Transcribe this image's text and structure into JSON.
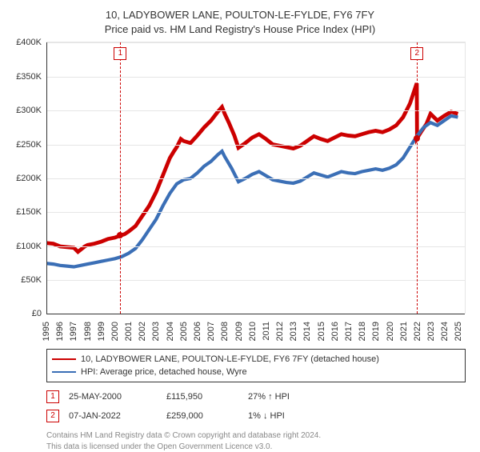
{
  "title_line1": "10, LADYBOWER LANE, POULTON-LE-FYLDE, FY6 7FY",
  "title_line2": "Price paid vs. HM Land Registry's House Price Index (HPI)",
  "chart": {
    "type": "line",
    "background_color": "#ffffff",
    "grid_color": "#e6e6e6",
    "axis_color": "#333333",
    "x_years": [
      1995,
      1996,
      1997,
      1998,
      1999,
      2000,
      2001,
      2002,
      2003,
      2004,
      2005,
      2006,
      2007,
      2008,
      2009,
      2010,
      2011,
      2012,
      2013,
      2014,
      2015,
      2016,
      2017,
      2018,
      2019,
      2020,
      2021,
      2022,
      2023,
      2024,
      2025
    ],
    "x_min": 1995,
    "x_max": 2025.5,
    "ylim": [
      0,
      400000
    ],
    "ytick_step": 50000,
    "ytick_labels": [
      "£0",
      "£50K",
      "£100K",
      "£150K",
      "£200K",
      "£250K",
      "£300K",
      "£350K",
      "£400K"
    ],
    "tick_fontsize": 11,
    "series": [
      {
        "name": "price_paid",
        "label": "10, LADYBOWER LANE, POULTON-LE-FYLDE, FY6 7FY (detached house)",
        "color": "#cc0000",
        "line_width": 1.6,
        "data": [
          [
            1995,
            105000
          ],
          [
            1995.5,
            104000
          ],
          [
            1996,
            100000
          ],
          [
            1996.5,
            99000
          ],
          [
            1997,
            98000
          ],
          [
            1997.3,
            92000
          ],
          [
            1997.8,
            100000
          ],
          [
            1998,
            102000
          ],
          [
            1998.5,
            104000
          ],
          [
            1999,
            107000
          ],
          [
            1999.5,
            111000
          ],
          [
            2000,
            113000
          ],
          [
            2000.39,
            115950
          ],
          [
            2000.7,
            118000
          ],
          [
            2001,
            122000
          ],
          [
            2001.5,
            130000
          ],
          [
            2002,
            145000
          ],
          [
            2002.5,
            160000
          ],
          [
            2003,
            180000
          ],
          [
            2003.5,
            205000
          ],
          [
            2004,
            230000
          ],
          [
            2004.3,
            240000
          ],
          [
            2004.5,
            246000
          ],
          [
            2004.8,
            258000
          ],
          [
            2005,
            255000
          ],
          [
            2005.5,
            252000
          ],
          [
            2006,
            263000
          ],
          [
            2006.5,
            275000
          ],
          [
            2007,
            285000
          ],
          [
            2007.5,
            298000
          ],
          [
            2007.8,
            305000
          ],
          [
            2008,
            295000
          ],
          [
            2008.3,
            282000
          ],
          [
            2008.7,
            263000
          ],
          [
            2009,
            245000
          ],
          [
            2009.5,
            252000
          ],
          [
            2010,
            260000
          ],
          [
            2010.5,
            265000
          ],
          [
            2011,
            258000
          ],
          [
            2011.5,
            250000
          ],
          [
            2012,
            248000
          ],
          [
            2012.5,
            246000
          ],
          [
            2013,
            244000
          ],
          [
            2013.5,
            248000
          ],
          [
            2014,
            255000
          ],
          [
            2014.5,
            262000
          ],
          [
            2015,
            258000
          ],
          [
            2015.5,
            255000
          ],
          [
            2016,
            260000
          ],
          [
            2016.5,
            265000
          ],
          [
            2017,
            263000
          ],
          [
            2017.5,
            262000
          ],
          [
            2018,
            265000
          ],
          [
            2018.5,
            268000
          ],
          [
            2019,
            270000
          ],
          [
            2019.5,
            268000
          ],
          [
            2020,
            272000
          ],
          [
            2020.5,
            278000
          ],
          [
            2021,
            290000
          ],
          [
            2021.5,
            310000
          ],
          [
            2022,
            340000
          ],
          [
            2022.02,
            259000
          ],
          [
            2022.3,
            268000
          ],
          [
            2022.7,
            280000
          ],
          [
            2023,
            295000
          ],
          [
            2023.5,
            285000
          ],
          [
            2024,
            292000
          ],
          [
            2024.5,
            298000
          ],
          [
            2025,
            295000
          ]
        ]
      },
      {
        "name": "hpi",
        "label": "HPI: Average price, detached house, Wyre",
        "color": "#3b6fb6",
        "line_width": 1.4,
        "data": [
          [
            1995,
            75000
          ],
          [
            1995.5,
            74000
          ],
          [
            1996,
            72000
          ],
          [
            1996.5,
            71000
          ],
          [
            1997,
            70000
          ],
          [
            1997.5,
            72000
          ],
          [
            1998,
            74000
          ],
          [
            1998.5,
            76000
          ],
          [
            1999,
            78000
          ],
          [
            1999.5,
            80000
          ],
          [
            2000,
            82000
          ],
          [
            2000.5,
            85000
          ],
          [
            2001,
            90000
          ],
          [
            2001.5,
            97000
          ],
          [
            2002,
            110000
          ],
          [
            2002.5,
            125000
          ],
          [
            2003,
            140000
          ],
          [
            2003.5,
            160000
          ],
          [
            2004,
            178000
          ],
          [
            2004.5,
            192000
          ],
          [
            2005,
            198000
          ],
          [
            2005.5,
            200000
          ],
          [
            2006,
            208000
          ],
          [
            2006.5,
            218000
          ],
          [
            2007,
            225000
          ],
          [
            2007.5,
            235000
          ],
          [
            2007.8,
            240000
          ],
          [
            2008,
            232000
          ],
          [
            2008.5,
            215000
          ],
          [
            2009,
            195000
          ],
          [
            2009.5,
            200000
          ],
          [
            2010,
            206000
          ],
          [
            2010.5,
            210000
          ],
          [
            2011,
            204000
          ],
          [
            2011.5,
            198000
          ],
          [
            2012,
            196000
          ],
          [
            2012.5,
            194000
          ],
          [
            2013,
            193000
          ],
          [
            2013.5,
            196000
          ],
          [
            2014,
            202000
          ],
          [
            2014.5,
            208000
          ],
          [
            2015,
            205000
          ],
          [
            2015.5,
            202000
          ],
          [
            2016,
            206000
          ],
          [
            2016.5,
            210000
          ],
          [
            2017,
            208000
          ],
          [
            2017.5,
            207000
          ],
          [
            2018,
            210000
          ],
          [
            2018.5,
            212000
          ],
          [
            2019,
            214000
          ],
          [
            2019.5,
            212000
          ],
          [
            2020,
            215000
          ],
          [
            2020.5,
            220000
          ],
          [
            2021,
            230000
          ],
          [
            2021.5,
            246000
          ],
          [
            2022,
            262000
          ],
          [
            2022.5,
            275000
          ],
          [
            2023,
            282000
          ],
          [
            2023.5,
            278000
          ],
          [
            2024,
            285000
          ],
          [
            2024.5,
            292000
          ],
          [
            2025,
            290000
          ]
        ]
      }
    ],
    "sale_markers": [
      {
        "n": "1",
        "year": 2000.39,
        "price": 115950,
        "color": "#cc0000",
        "vline_color": "#cc0000"
      },
      {
        "n": "2",
        "year": 2022.02,
        "price": 259000,
        "color": "#cc0000",
        "vline_color": "#cc0000"
      }
    ]
  },
  "legend": {
    "border_color": "#333333",
    "rows": [
      {
        "color": "#cc0000",
        "label": "10, LADYBOWER LANE, POULTON-LE-FYLDE, FY6 7FY (detached house)"
      },
      {
        "color": "#3b6fb6",
        "label": "HPI: Average price, detached house, Wyre"
      }
    ]
  },
  "sales_table": {
    "rows": [
      {
        "n": "1",
        "color": "#cc0000",
        "date": "25-MAY-2000",
        "price": "£115,950",
        "delta": "27% ↑ HPI"
      },
      {
        "n": "2",
        "color": "#cc0000",
        "date": "07-JAN-2022",
        "price": "£259,000",
        "delta": "1% ↓ HPI"
      }
    ]
  },
  "footer": {
    "color": "#888888",
    "line1": "Contains HM Land Registry data © Crown copyright and database right 2024.",
    "line2": "This data is licensed under the Open Government Licence v3.0."
  }
}
